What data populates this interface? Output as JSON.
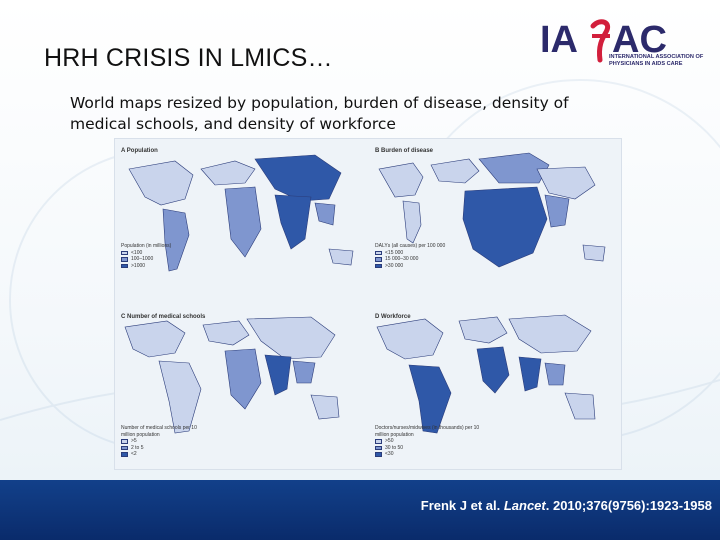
{
  "slide": {
    "title": "HRH CRISIS IN LMICS…",
    "subtitle": "World maps resized by population, burden of disease, density of medical schools, and density of workforce"
  },
  "logo": {
    "text": "IAPAC",
    "tagline": "International Association of Physicians in AIDS Care"
  },
  "figure": {
    "panels": [
      {
        "title": "A  Population",
        "legend_title": "Population (in millions)",
        "legend": [
          "<100",
          "100–1000",
          ">1000"
        ]
      },
      {
        "title": "B  Burden of disease",
        "legend_title": "DALYs (all causes) per 100 000",
        "legend": [
          "<15 000",
          "15 000–30 000",
          ">30 000"
        ]
      },
      {
        "title": "C  Number of medical schools",
        "legend_title": "Number of medical schools per 10 million population",
        "legend": [
          ">5",
          "2 to 5",
          "<2"
        ]
      },
      {
        "title": "D  Workforce",
        "legend_title": "Doctors/nurses/midwives (in thousands) per 10 million population",
        "legend": [
          ">50",
          "30 to 50",
          "<30"
        ]
      }
    ],
    "colors": {
      "light": "#c9d4ec",
      "mid": "#7f96cf",
      "dark": "#2f58a8",
      "outline": "#2b3c7a"
    }
  },
  "footer": {
    "citation_authors": "Frenk J et al. ",
    "citation_journal": "Lancet",
    "citation_rest": ". 2010;376(9756):1923-1958"
  }
}
